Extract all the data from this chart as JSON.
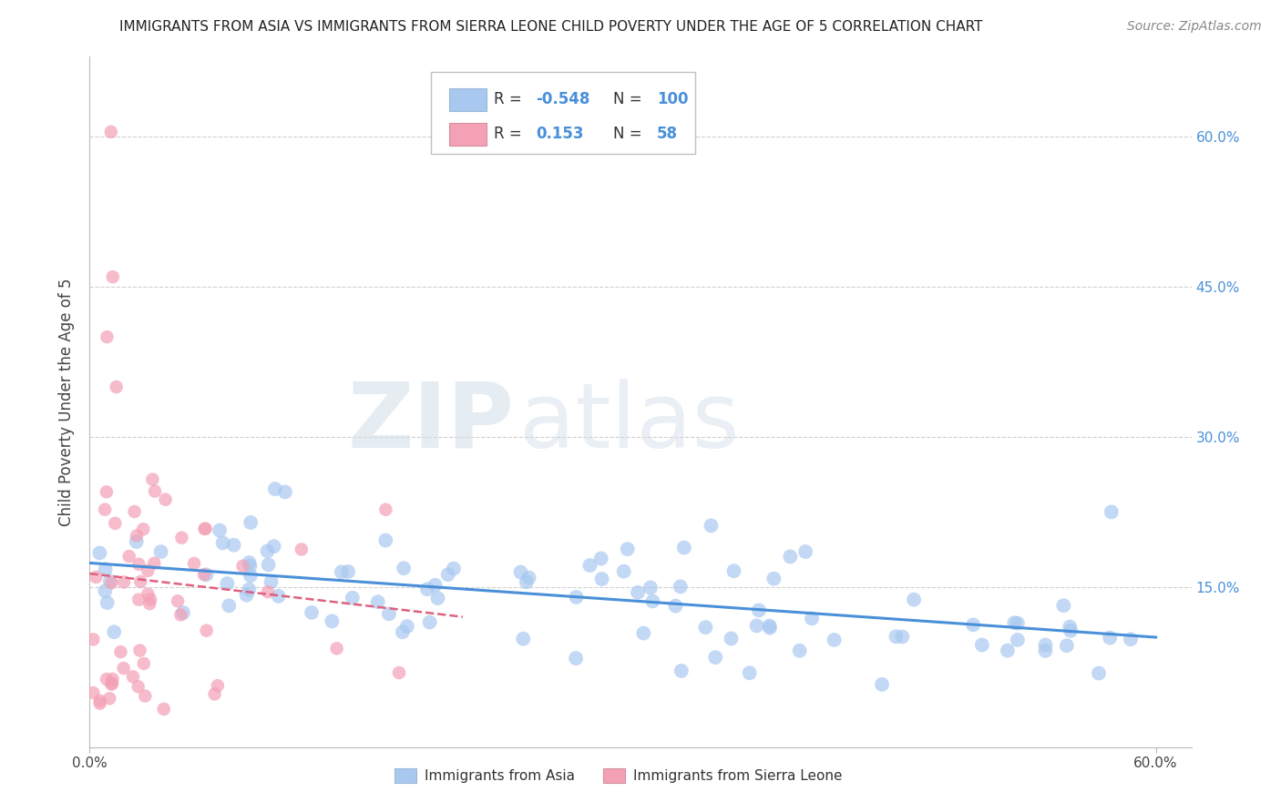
{
  "title": "IMMIGRANTS FROM ASIA VS IMMIGRANTS FROM SIERRA LEONE CHILD POVERTY UNDER THE AGE OF 5 CORRELATION CHART",
  "source": "Source: ZipAtlas.com",
  "ylabel_left": "Child Poverty Under the Age of 5",
  "xlim": [
    0.0,
    0.62
  ],
  "ylim": [
    -0.01,
    0.68
  ],
  "y_ticks_right": [
    0.15,
    0.3,
    0.45,
    0.6
  ],
  "y_tick_labels_right": [
    "15.0%",
    "30.0%",
    "45.0%",
    "60.0%"
  ],
  "grid_color": "#d0d0d0",
  "background_color": "#ffffff",
  "asia_color": "#a8c8f0",
  "asia_line_color": "#4a90d9",
  "sierra_leone_color": "#f4a0b5",
  "sierra_leone_line_color": "#e06080",
  "legend_R_asia": "-0.548",
  "legend_N_asia": "100",
  "legend_R_sl": "0.153",
  "legend_N_sl": "58",
  "asia_marker_size": 130,
  "sl_marker_size": 110,
  "asia_alpha": 0.7,
  "sl_alpha": 0.7
}
